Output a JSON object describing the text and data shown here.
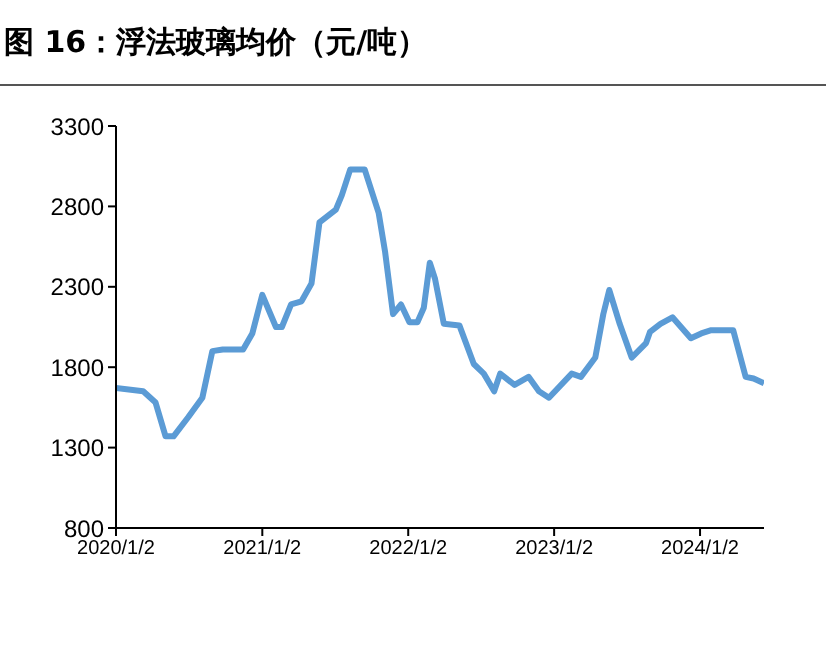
{
  "chart_data": {
    "type": "line",
    "title": "图 16：浮法玻璃均价（元/吨）",
    "x": [
      "2020-01-02",
      "2020-03-10",
      "2020-04-10",
      "2020-05-05",
      "2020-05-25",
      "2020-07-01",
      "2020-08-05",
      "2020-08-30",
      "2020-09-25",
      "2020-11-15",
      "2020-12-08",
      "2021-01-02",
      "2021-02-05",
      "2021-02-20",
      "2021-03-15",
      "2021-04-10",
      "2021-05-05",
      "2021-05-25",
      "2021-07-05",
      "2021-07-20",
      "2021-08-10",
      "2021-09-15",
      "2021-10-20",
      "2021-11-05",
      "2021-11-25",
      "2021-12-15",
      "2022-01-05",
      "2022-01-25",
      "2022-02-10",
      "2022-02-25",
      "2022-03-10",
      "2022-04-01",
      "2022-05-10",
      "2022-06-15",
      "2022-07-10",
      "2022-08-05",
      "2022-08-20",
      "2022-09-25",
      "2022-10-30",
      "2022-11-25",
      "2022-12-20",
      "2023-02-15",
      "2023-03-10",
      "2023-04-15",
      "2023-05-05",
      "2023-05-20",
      "2023-06-15",
      "2023-07-15",
      "2023-08-20",
      "2023-08-30",
      "2023-09-25",
      "2023-10-25",
      "2023-12-10",
      "2024-01-05",
      "2024-01-30",
      "2024-03-25",
      "2024-04-25",
      "2024-05-15",
      "2024-06-10"
    ],
    "series": [
      {
        "color": "#5b9bd5",
        "values": [
          1670,
          1650,
          1580,
          1370,
          1370,
          1490,
          1610,
          1900,
          1910,
          1910,
          2010,
          2250,
          2050,
          2050,
          2190,
          2210,
          2320,
          2700,
          2780,
          2870,
          3030,
          3030,
          2760,
          2520,
          2130,
          2190,
          2080,
          2080,
          2170,
          2450,
          2350,
          2070,
          2060,
          1820,
          1760,
          1650,
          1760,
          1690,
          1740,
          1650,
          1610,
          1760,
          1740,
          1860,
          2130,
          2280,
          2070,
          1860,
          1950,
          2020,
          2070,
          2110,
          1980,
          2010,
          2030,
          2030,
          1740,
          1730,
          1700
        ]
      }
    ],
    "xlim": [
      "2020-01-02",
      "2024-06-10"
    ],
    "xticks": [
      {
        "value": "2020-01-02",
        "label": "2020/1/2"
      },
      {
        "value": "2021-01-02",
        "label": "2021/1/2"
      },
      {
        "value": "2022-01-02",
        "label": "2022/1/2"
      },
      {
        "value": "2023-01-02",
        "label": "2023/1/2"
      },
      {
        "value": "2024-01-02",
        "label": "2024/1/2"
      }
    ],
    "ylim": [
      800,
      3300
    ],
    "yticks": [
      800,
      1300,
      1800,
      2300,
      2800,
      3300
    ],
    "grid": false,
    "legend": false,
    "marker": "none",
    "line_style": "solid"
  }
}
